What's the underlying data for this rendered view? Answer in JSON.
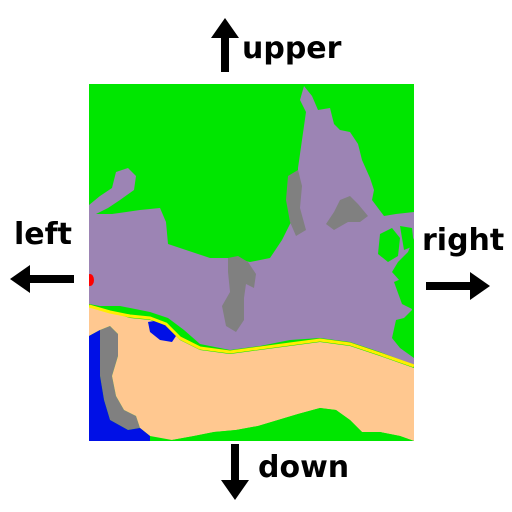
{
  "labels": {
    "upper": "upper",
    "left": "left",
    "right": "right",
    "down": "down"
  },
  "map": {
    "regions": [
      {
        "name": "grass",
        "color": "#00e600"
      },
      {
        "name": "purple-zone",
        "color": "#9c84b4"
      },
      {
        "name": "rock",
        "color": "#808080"
      },
      {
        "name": "sand",
        "color": "#ffc890"
      },
      {
        "name": "water",
        "color": "#0010e6"
      },
      {
        "name": "path",
        "color": "#ffee00"
      },
      {
        "name": "marker",
        "color": "#ff0000"
      }
    ]
  },
  "icons": [
    "arrow-up-icon",
    "arrow-left-icon",
    "arrow-right-icon",
    "arrow-down-icon"
  ]
}
